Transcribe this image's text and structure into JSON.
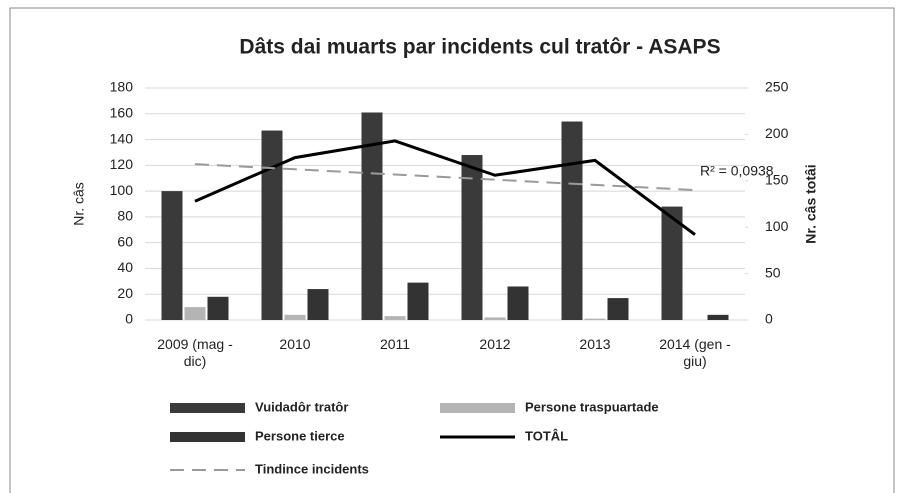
{
  "chart_data": {
    "type": "bar",
    "title": "Dâts dai muarts par incidents cul tratôr - ASAPS",
    "categories": [
      "2009 (mag - dic)",
      "2010",
      "2011",
      "2012",
      "2013",
      "2014 (gen - giu)"
    ],
    "series": [
      {
        "name": "Vuidadôr tratôr",
        "type": "bar",
        "color": "#3a3a3a",
        "values": [
          100,
          147,
          161,
          128,
          154,
          88
        ]
      },
      {
        "name": "Persone traspuartade",
        "type": "bar",
        "color": "#b4b4b4",
        "values": [
          10,
          4,
          3,
          2,
          1,
          0
        ]
      },
      {
        "name": "Persone tierce",
        "type": "bar",
        "color": "#333333",
        "values": [
          18,
          24,
          29,
          26,
          17,
          4
        ]
      },
      {
        "name": "TOTÂL",
        "type": "line",
        "axis": "y2",
        "color": "#000000",
        "values": [
          128,
          175,
          193,
          156,
          172,
          92
        ]
      },
      {
        "name": "Tindince incidents",
        "type": "line",
        "axis": "y2",
        "color": "#9a9a9a",
        "dashed": true,
        "values": [
          168,
          162.4,
          156.8,
          151.2,
          145.6,
          140
        ]
      }
    ],
    "ylabel": "Nr. câs",
    "y2label": "Nr. câs totâi",
    "annotation": "R² = 0,0938",
    "ylim": [
      0,
      180
    ],
    "yticks": [
      0,
      20,
      40,
      60,
      80,
      100,
      120,
      140,
      160,
      180
    ],
    "y2lim": [
      0,
      250
    ],
    "y2ticks": [
      0,
      50,
      100,
      150,
      200,
      250
    ],
    "grid": true,
    "legend": "bottom"
  }
}
